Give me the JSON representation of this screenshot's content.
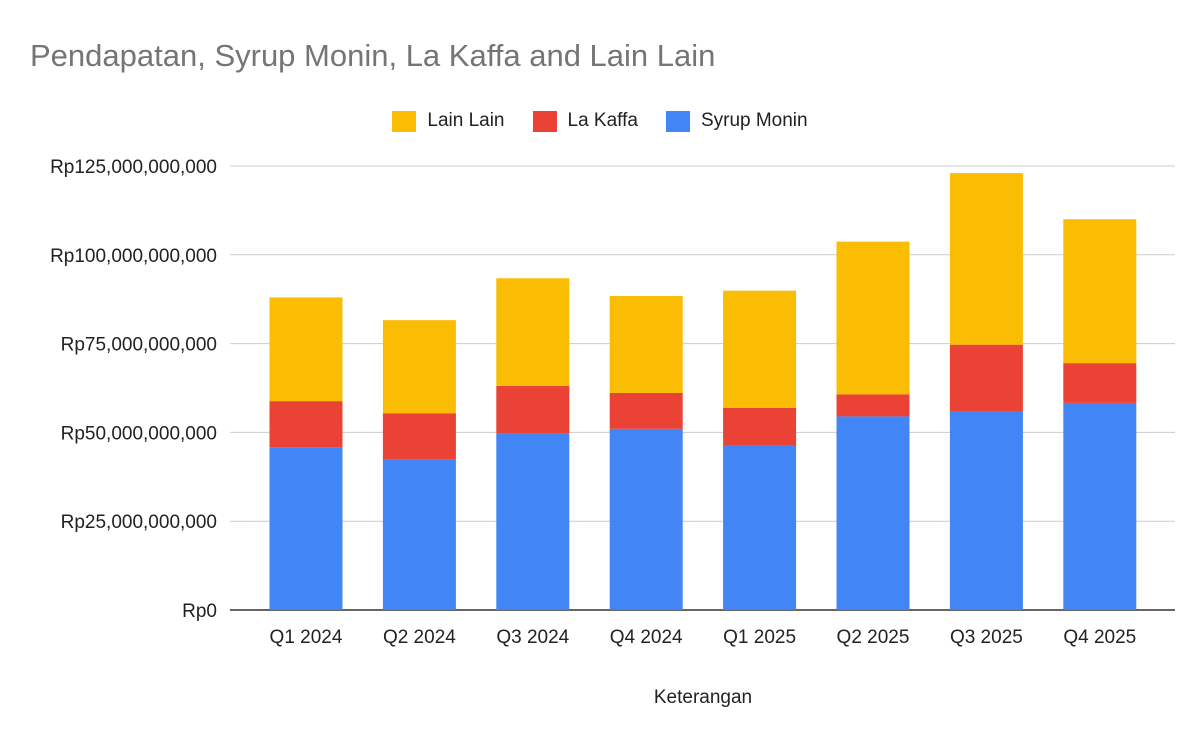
{
  "chart_data": {
    "type": "bar",
    "stacked": true,
    "title": "Pendapatan, Syrup Monin, La Kaffa and Lain Lain",
    "xlabel": "Keterangan",
    "ylabel": "",
    "ylim": [
      0,
      125000000000
    ],
    "y_ticks": [
      0,
      25000000000,
      50000000000,
      75000000000,
      100000000000,
      125000000000
    ],
    "y_tick_labels": [
      "Rp0",
      "Rp25,000,000,000",
      "Rp50,000,000,000",
      "Rp75,000,000,000",
      "Rp100,000,000,000",
      "Rp125,000,000,000"
    ],
    "grid": true,
    "legend_position": "top-center",
    "categories": [
      "Q1 2024",
      "Q2 2024",
      "Q3 2024",
      "Q4 2024",
      "Q1 2025",
      "Q2 2025",
      "Q3 2025",
      "Q4 2025"
    ],
    "series": [
      {
        "name": "Syrup Monin",
        "color": "#4285F4",
        "values": [
          45800000000,
          42300000000,
          49600000000,
          51000000000,
          46200000000,
          54500000000,
          55900000000,
          58300000000
        ]
      },
      {
        "name": "La Kaffa",
        "color": "#EA4335",
        "values": [
          13000000000,
          13100000000,
          13500000000,
          10100000000,
          10700000000,
          6200000000,
          18800000000,
          11200000000
        ]
      },
      {
        "name": "Lain Lain",
        "color": "#FBBC04",
        "values": [
          29200000000,
          26200000000,
          30300000000,
          27300000000,
          33000000000,
          43000000000,
          48300000000,
          40500000000
        ]
      }
    ],
    "legend_order": [
      "Lain Lain",
      "La Kaffa",
      "Syrup Monin"
    ]
  }
}
